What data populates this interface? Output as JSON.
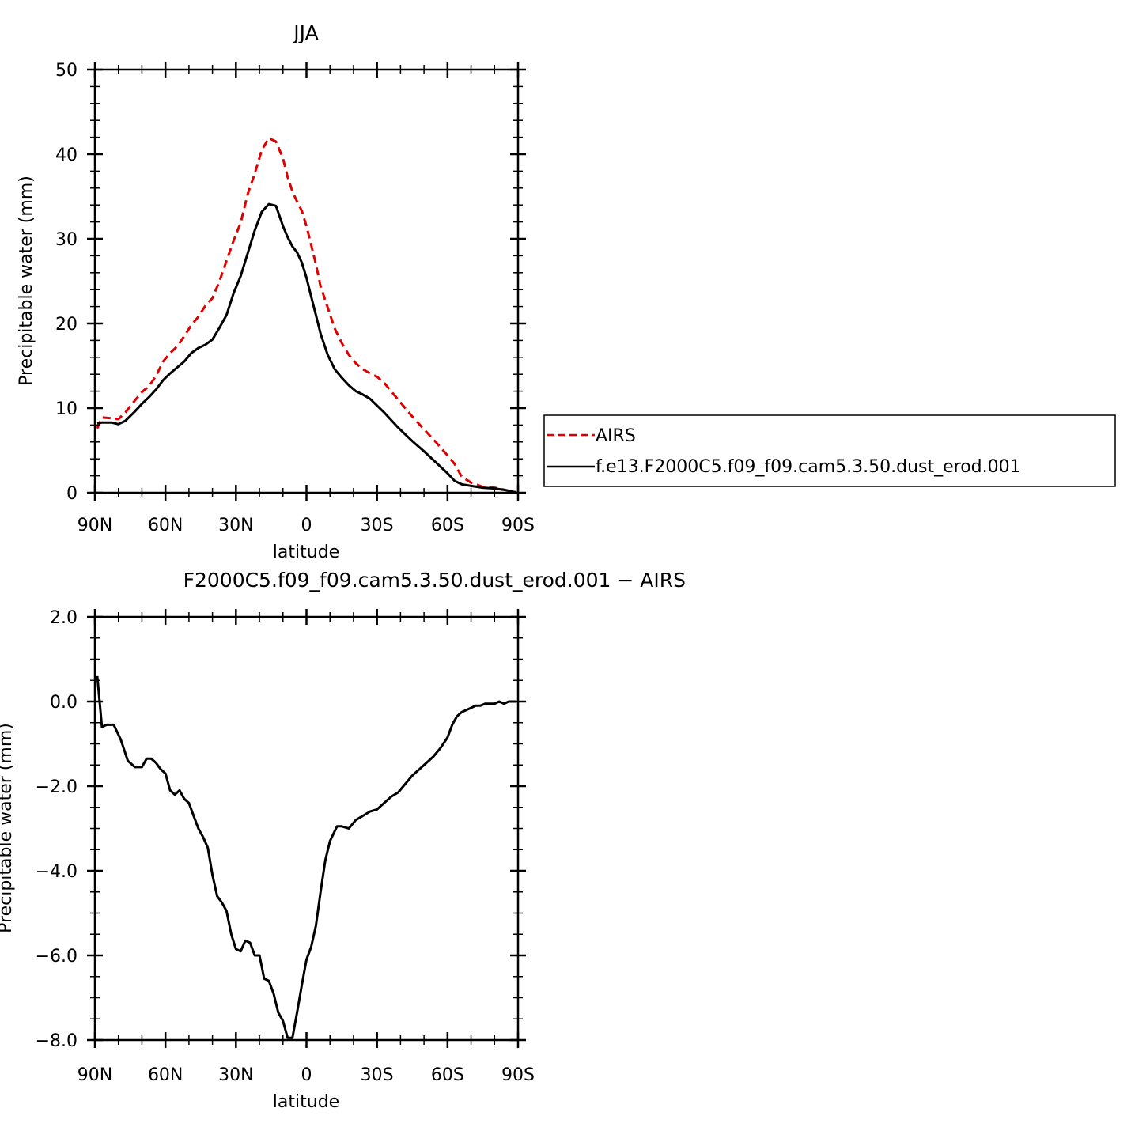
{
  "chart_data": [
    {
      "type": "line",
      "title": "JJA",
      "xlabel": "latitude",
      "ylabel": "Precipitable water (mm)",
      "xlim": [
        90,
        -90
      ],
      "ylim": [
        0,
        50
      ],
      "xticks": [
        90,
        60,
        30,
        0,
        -30,
        -60,
        -90
      ],
      "xtick_labels": [
        "90N",
        "60N",
        "30N",
        "0",
        "30S",
        "60S",
        "90S"
      ],
      "yticks": [
        0,
        10,
        20,
        30,
        40,
        50
      ],
      "ytick_labels": [
        "0",
        "10",
        "20",
        "30",
        "40",
        "50"
      ],
      "grid": false,
      "legend_placement": "right",
      "series": [
        {
          "name": "AIRS",
          "color": "#e00000",
          "dash": true,
          "x": [
            89,
            87,
            83,
            80,
            77,
            73,
            70,
            67,
            64,
            61,
            58,
            55,
            52,
            49,
            46,
            43,
            40,
            37,
            34,
            31,
            28,
            25,
            22,
            19,
            16,
            13,
            10,
            8,
            6,
            4,
            2,
            0,
            -2,
            -4,
            -6,
            -9,
            -12,
            -15,
            -18,
            -21,
            -24,
            -27,
            -30,
            -33,
            -36,
            -39,
            -42,
            -45,
            -50,
            -55,
            -60,
            -63,
            -66,
            -70,
            -75,
            -80,
            -85,
            -89
          ],
          "values": [
            7.6,
            8.9,
            8.8,
            8.7,
            9.5,
            10.9,
            11.9,
            12.6,
            13.8,
            15.5,
            16.5,
            17.3,
            18.5,
            19.8,
            20.8,
            22.1,
            23.0,
            25.0,
            27.4,
            29.8,
            31.9,
            35.3,
            37.7,
            40.5,
            41.9,
            41.5,
            39.5,
            37.3,
            35.6,
            34.4,
            33.3,
            31.5,
            29.3,
            27.0,
            24.4,
            21.9,
            19.4,
            17.7,
            16.3,
            15.3,
            14.6,
            14.1,
            13.7,
            13.0,
            12.0,
            11.0,
            10.0,
            9.0,
            7.5,
            6.0,
            4.4,
            3.4,
            1.9,
            1.2,
            0.7,
            0.6,
            0.3,
            0.05
          ]
        },
        {
          "name": "f.e13.F2000C5.f09_f09.cam5.3.50.dust_erod.001",
          "color": "#000000",
          "dash": false,
          "x": [
            89,
            87,
            83,
            80,
            77,
            73,
            70,
            67,
            64,
            61,
            58,
            55,
            52,
            49,
            46,
            43,
            40,
            37,
            34,
            31,
            28,
            25,
            22,
            19,
            16,
            13,
            10,
            8,
            6,
            4,
            2,
            0,
            -2,
            -4,
            -6,
            -9,
            -12,
            -15,
            -18,
            -21,
            -24,
            -27,
            -30,
            -33,
            -36,
            -39,
            -42,
            -45,
            -50,
            -55,
            -60,
            -63,
            -66,
            -70,
            -75,
            -80,
            -85,
            -89
          ],
          "values": [
            8.2,
            8.3,
            8.3,
            8.1,
            8.5,
            9.6,
            10.5,
            11.3,
            12.2,
            13.3,
            14.1,
            14.8,
            15.5,
            16.5,
            17.1,
            17.5,
            18.1,
            19.5,
            21.0,
            23.6,
            25.6,
            28.3,
            31.0,
            33.2,
            34.1,
            33.9,
            31.5,
            30.2,
            29.1,
            28.4,
            27.2,
            25.4,
            23.2,
            21.0,
            18.8,
            16.3,
            14.6,
            13.6,
            12.7,
            12.0,
            11.6,
            11.1,
            10.3,
            9.5,
            8.6,
            7.7,
            6.9,
            6.1,
            4.9,
            3.6,
            2.3,
            1.4,
            1.0,
            0.8,
            0.6,
            0.5,
            0.3,
            0.05
          ]
        }
      ]
    },
    {
      "type": "line",
      "title": "F2000C5.f09_f09.cam5.3.50.dust_erod.001 − AIRS",
      "xlabel": "latitude",
      "ylabel": "Precipitable water (mm)",
      "xlim": [
        90,
        -90
      ],
      "ylim": [
        -8.0,
        2.0
      ],
      "xticks": [
        90,
        60,
        30,
        0,
        -30,
        -60,
        -90
      ],
      "xtick_labels": [
        "90N",
        "60N",
        "30N",
        "0",
        "30S",
        "60S",
        "90S"
      ],
      "yticks": [
        2.0,
        0.0,
        -2.0,
        -4.0,
        -6.0,
        -8.0
      ],
      "ytick_labels": [
        "2.0",
        "0.0",
        "−2.0",
        "−4.0",
        "−6.0",
        "−8.0"
      ],
      "grid": false,
      "series": [
        {
          "color": "#000000",
          "x": [
            89,
            87,
            85,
            82,
            79,
            76,
            73,
            70,
            68,
            66,
            64,
            62,
            60,
            58,
            56,
            54,
            52,
            50,
            48,
            46,
            44,
            42,
            40,
            38,
            36,
            34,
            32,
            30,
            28,
            26,
            24,
            22,
            20,
            18,
            16,
            14,
            12,
            10,
            8,
            6,
            4,
            2,
            0,
            -2,
            -4,
            -6,
            -8,
            -10,
            -13,
            -15,
            -18,
            -21,
            -24,
            -27,
            -30,
            -33,
            -36,
            -39,
            -42,
            -45,
            -48,
            -51,
            -54,
            -57,
            -60,
            -62,
            -64,
            -66,
            -68,
            -70,
            -72,
            -74,
            -76,
            -78,
            -80,
            -82,
            -84,
            -86,
            -88,
            -89
          ],
          "values": [
            0.6,
            -0.6,
            -0.55,
            -0.55,
            -0.9,
            -1.4,
            -1.55,
            -1.55,
            -1.35,
            -1.35,
            -1.45,
            -1.6,
            -1.7,
            -2.1,
            -2.2,
            -2.1,
            -2.3,
            -2.4,
            -2.7,
            -3.0,
            -3.2,
            -3.45,
            -4.1,
            -4.6,
            -4.75,
            -4.95,
            -5.5,
            -5.85,
            -5.9,
            -5.65,
            -5.7,
            -6.0,
            -6.0,
            -6.55,
            -6.6,
            -6.9,
            -7.35,
            -7.55,
            -7.95,
            -7.95,
            -7.35,
            -6.7,
            -6.1,
            -5.8,
            -5.3,
            -4.5,
            -3.75,
            -3.3,
            -2.95,
            -2.95,
            -3.0,
            -2.8,
            -2.7,
            -2.6,
            -2.55,
            -2.4,
            -2.25,
            -2.15,
            -1.95,
            -1.75,
            -1.6,
            -1.45,
            -1.3,
            -1.1,
            -0.85,
            -0.55,
            -0.35,
            -0.25,
            -0.2,
            -0.15,
            -0.1,
            -0.1,
            -0.05,
            -0.05,
            -0.05,
            -0.0,
            -0.05,
            -0.0,
            -0.0,
            0.0
          ]
        }
      ]
    }
  ]
}
